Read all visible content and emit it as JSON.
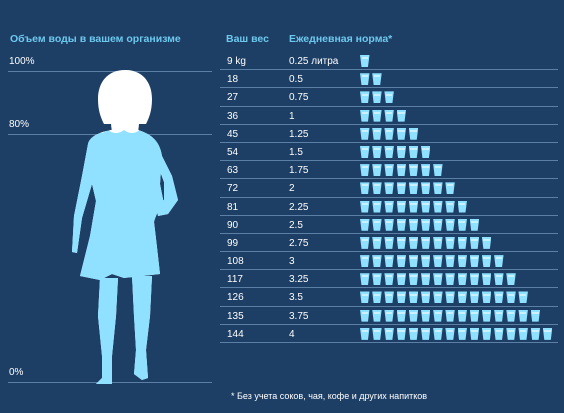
{
  "left_panel": {
    "title": "Объем воды в вашем организме",
    "scale": [
      {
        "label": "100%",
        "value": 100
      },
      {
        "label": "80%",
        "value": 80
      },
      {
        "label": "0%",
        "value": 0
      }
    ],
    "water_level_percent": 80
  },
  "table": {
    "header_weight": "Ваш вес",
    "header_norm": "Ежедневная норма*",
    "rows": [
      {
        "weight": "9 kg",
        "norm": "0.25 литра",
        "glasses": 1
      },
      {
        "weight": "18",
        "norm": "0.5",
        "glasses": 2
      },
      {
        "weight": "27",
        "norm": "0.75",
        "glasses": 3
      },
      {
        "weight": "36",
        "norm": "1",
        "glasses": 4
      },
      {
        "weight": "45",
        "norm": "1.25",
        "glasses": 5
      },
      {
        "weight": "54",
        "norm": "1.5",
        "glasses": 6
      },
      {
        "weight": "63",
        "norm": "1.75",
        "glasses": 7
      },
      {
        "weight": "72",
        "norm": "2",
        "glasses": 8
      },
      {
        "weight": "81",
        "norm": "2.25",
        "glasses": 9
      },
      {
        "weight": "90",
        "norm": "2.5",
        "glasses": 10
      },
      {
        "weight": "99",
        "norm": "2.75",
        "glasses": 11
      },
      {
        "weight": "108",
        "norm": "3",
        "glasses": 12
      },
      {
        "weight": "117",
        "norm": "3.25",
        "glasses": 13
      },
      {
        "weight": "126",
        "norm": "3.5",
        "glasses": 14
      },
      {
        "weight": "135",
        "norm": "3.75",
        "glasses": 15
      },
      {
        "weight": "144",
        "norm": "4",
        "glasses": 16
      }
    ]
  },
  "footnote": "* Без учета соков, чая, кофе и других напитков",
  "colors": {
    "background": "#1d3f66",
    "accent": "#6ec8ee",
    "glass": "#8fe1ff",
    "figure_light": "#ffffff",
    "figure_water": "#8fe1ff"
  },
  "icons": {
    "glass": "water-glass-icon",
    "figure": "woman-silhouette-icon"
  }
}
